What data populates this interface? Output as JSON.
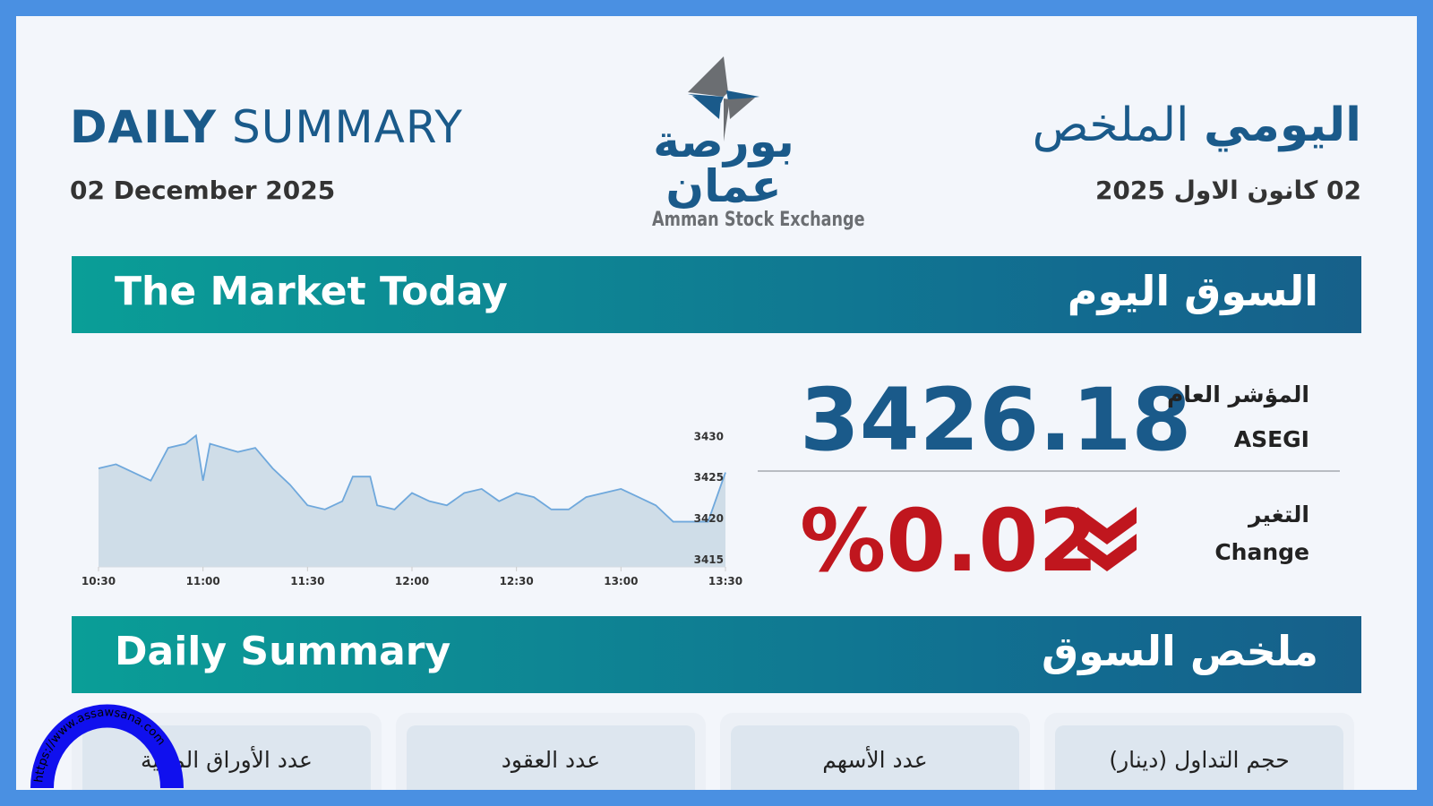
{
  "header": {
    "title_bold": "DAILY",
    "title_rest": "SUMMARY",
    "date_en": "02 December 2025",
    "title_ar_light": "الملخص",
    "title_ar_bold": "اليومي",
    "date_ar": "02 كانون الاول 2025"
  },
  "logo": {
    "arabic": "بورصة عمان",
    "english": "Amman Stock Exchange",
    "colors": {
      "blue": "#1a5a8a",
      "gray": "#6b6e72"
    }
  },
  "market_banner": {
    "en": "The Market Today",
    "ar": "السوق اليوم"
  },
  "index": {
    "value": "3426.18",
    "label_ar": "المؤشر العام",
    "label_en": "ASEGI"
  },
  "change": {
    "value": "%0.02",
    "direction": "down",
    "icon": "double-chevron-down-icon",
    "label_ar": "التغير",
    "label_en": "Change",
    "color": "#c0161e"
  },
  "summary_banner": {
    "en": "Daily Summary",
    "ar": "ملخص السوق"
  },
  "cards": [
    {
      "label": "عدد الأوراق المالية"
    },
    {
      "label": "عدد العقود"
    },
    {
      "label": "عدد الأسهم"
    },
    {
      "label": "حجم التداول (دينار)"
    }
  ],
  "watermark": "https://www.assawsana.com",
  "chart_data": {
    "type": "area",
    "x": [
      "10:30",
      "10:35",
      "10:40",
      "10:45",
      "10:50",
      "10:55",
      "10:58",
      "11:00",
      "11:02",
      "11:10",
      "11:15",
      "11:20",
      "11:25",
      "11:30",
      "11:35",
      "11:40",
      "11:43",
      "11:48",
      "11:50",
      "11:55",
      "12:00",
      "12:05",
      "12:10",
      "12:15",
      "12:20",
      "12:25",
      "12:30",
      "12:35",
      "12:40",
      "12:45",
      "12:50",
      "12:55",
      "13:00",
      "13:05",
      "13:10",
      "13:15",
      "13:20",
      "13:25",
      "13:30"
    ],
    "values": [
      3426,
      3426.5,
      3425.5,
      3424.5,
      3428.5,
      3429,
      3430,
      3424.5,
      3429,
      3428,
      3428.5,
      3426,
      3424,
      3421.5,
      3421,
      3422,
      3425,
      3425,
      3421.5,
      3421,
      3423,
      3422,
      3421.5,
      3423,
      3423.5,
      3422,
      3423,
      3422.5,
      3421,
      3421,
      3422.5,
      3423,
      3423.5,
      3422.5,
      3421.5,
      3419.5,
      3419.5,
      3419.5,
      3425.5
    ],
    "xticks": [
      "10:30",
      "11:00",
      "11:30",
      "12:00",
      "12:30",
      "13:00",
      "13:30"
    ],
    "yticks": [
      "3415",
      "3420",
      "3425",
      "3430"
    ],
    "ylim": [
      3414,
      3432
    ],
    "line_color": "#6fa8dc",
    "fill_color": "#cfdde8",
    "grid": false
  }
}
